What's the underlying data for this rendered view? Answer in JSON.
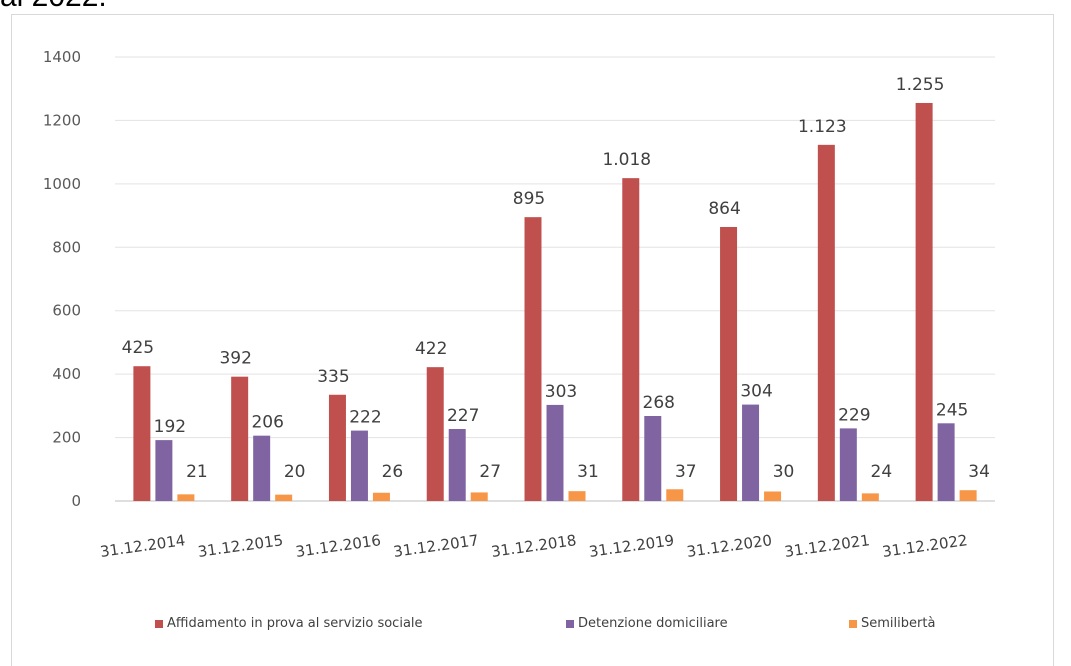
{
  "caption_fragment": "al 2022.",
  "chart_data": {
    "type": "bar",
    "title": "",
    "xlabel": "",
    "ylabel": "",
    "ylim": [
      0,
      1400
    ],
    "yticks": [
      "0",
      "200",
      "400",
      "600",
      "800",
      "1000",
      "1200",
      "1400"
    ],
    "grid": true,
    "legend_position": "bottom",
    "categories": [
      "31.12.2014",
      "31.12.2015",
      "31.12.2016",
      "31.12.2017",
      "31.12.2018",
      "31.12.2019",
      "31.12.2020",
      "31.12.2021",
      "31.12.2022"
    ],
    "series": [
      {
        "name": "Affidamento in prova al servizio sociale",
        "color": "#c0504d",
        "values": [
          425,
          392,
          335,
          422,
          895,
          1018,
          864,
          1123,
          1255
        ],
        "labels": [
          "425",
          "392",
          "335",
          "422",
          "895",
          "1.018",
          "864",
          "1.123",
          "1.255"
        ]
      },
      {
        "name": "Detenzione domiciliare",
        "color": "#8064a2",
        "values": [
          192,
          206,
          222,
          227,
          303,
          268,
          304,
          229,
          245
        ],
        "labels": [
          "192",
          "206",
          "222",
          "227",
          "303",
          "268",
          "304",
          "229",
          "245"
        ]
      },
      {
        "name": "Semilibertà",
        "color": "#f79646",
        "values": [
          21,
          20,
          26,
          27,
          31,
          37,
          30,
          24,
          34
        ],
        "labels": [
          "21",
          "20",
          "26",
          "27",
          "31",
          "37",
          "30",
          "24",
          "34"
        ]
      }
    ]
  }
}
